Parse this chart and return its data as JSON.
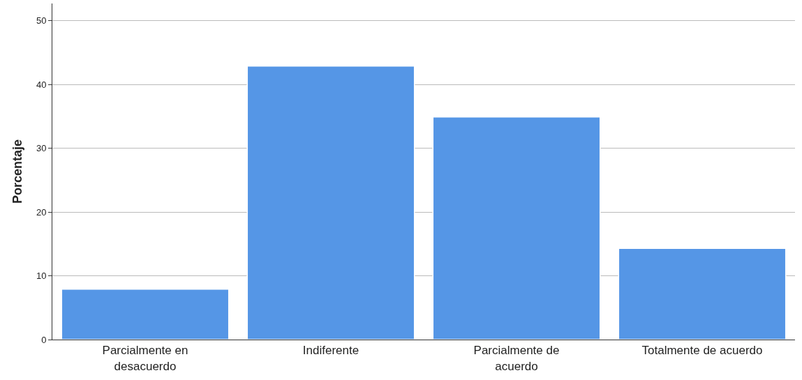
{
  "chart_data": {
    "type": "bar",
    "ylabel": "Porcentaje",
    "categories": [
      "Parcialmente en desacuerdo",
      "Indiferente",
      "Parcialmente de acuerdo",
      "Totalmente de acuerdo"
    ],
    "values": [
      7.9,
      42.9,
      34.9,
      14.3
    ],
    "color": "#5596e6",
    "ylim": [
      0,
      52.7
    ],
    "yticks": [
      0,
      10,
      20,
      30,
      40,
      50
    ],
    "grid": "y",
    "legend": false
  }
}
